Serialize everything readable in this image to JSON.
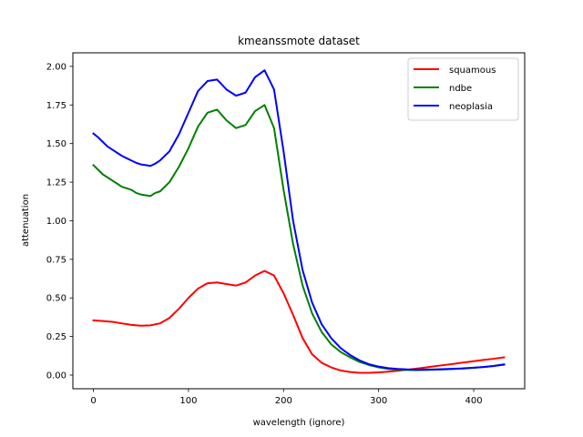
{
  "chart_data": {
    "type": "line",
    "title": "kmeanssmote dataset",
    "xlabel": "wavelength (ignore)",
    "ylabel": "attenuation",
    "xlim": [
      -21.6,
      453.6
    ],
    "ylim": [
      -0.0885,
      2.088
    ],
    "xticks": [
      0,
      100,
      200,
      300,
      400
    ],
    "yticks": [
      0.0,
      0.25,
      0.5,
      0.75,
      1.0,
      1.25,
      1.5,
      1.75,
      2.0
    ],
    "ytick_labels": [
      "0.00",
      "0.25",
      "0.50",
      "0.75",
      "1.00",
      "1.25",
      "1.50",
      "1.75",
      "2.00"
    ],
    "grid": false,
    "legend_position": "top-right",
    "series": [
      {
        "name": "squamous",
        "color": "#ff0000",
        "x": [
          0,
          10,
          20,
          30,
          40,
          50,
          60,
          70,
          80,
          90,
          100,
          110,
          120,
          130,
          140,
          150,
          160,
          170,
          180,
          190,
          200,
          210,
          220,
          230,
          240,
          250,
          260,
          270,
          280,
          290,
          300,
          310,
          320,
          330,
          340,
          350,
          360,
          370,
          380,
          390,
          400,
          410,
          420,
          432
        ],
        "values": [
          0.355,
          0.35,
          0.345,
          0.335,
          0.325,
          0.32,
          0.322,
          0.335,
          0.37,
          0.43,
          0.5,
          0.56,
          0.595,
          0.6,
          0.59,
          0.58,
          0.6,
          0.645,
          0.675,
          0.645,
          0.53,
          0.39,
          0.24,
          0.135,
          0.08,
          0.05,
          0.03,
          0.02,
          0.015,
          0.015,
          0.018,
          0.022,
          0.028,
          0.035,
          0.042,
          0.05,
          0.058,
          0.066,
          0.074,
          0.082,
          0.09,
          0.098,
          0.105,
          0.115
        ]
      },
      {
        "name": "ndbe",
        "color": "#008000",
        "x": [
          0,
          5,
          10,
          15,
          20,
          25,
          30,
          35,
          40,
          45,
          50,
          55,
          60,
          65,
          70,
          80,
          90,
          100,
          110,
          120,
          130,
          140,
          150,
          160,
          170,
          180,
          190,
          200,
          210,
          220,
          230,
          240,
          250,
          260,
          270,
          280,
          290,
          300,
          310,
          320,
          330,
          340,
          350,
          360,
          370,
          380,
          390,
          400,
          410,
          420,
          432
        ],
        "values": [
          1.36,
          1.33,
          1.3,
          1.28,
          1.26,
          1.24,
          1.22,
          1.21,
          1.2,
          1.18,
          1.17,
          1.165,
          1.16,
          1.18,
          1.19,
          1.25,
          1.35,
          1.47,
          1.61,
          1.7,
          1.72,
          1.65,
          1.6,
          1.62,
          1.71,
          1.75,
          1.6,
          1.2,
          0.85,
          0.58,
          0.4,
          0.28,
          0.2,
          0.15,
          0.115,
          0.085,
          0.065,
          0.05,
          0.04,
          0.035,
          0.033,
          0.032,
          0.033,
          0.035,
          0.037,
          0.04,
          0.043,
          0.047,
          0.052,
          0.058,
          0.07
        ]
      },
      {
        "name": "neoplasia",
        "color": "#0000ff",
        "x": [
          0,
          5,
          10,
          15,
          20,
          25,
          30,
          35,
          40,
          45,
          50,
          55,
          60,
          65,
          70,
          80,
          90,
          100,
          110,
          120,
          130,
          140,
          150,
          160,
          170,
          180,
          190,
          200,
          210,
          220,
          230,
          240,
          250,
          260,
          270,
          280,
          290,
          300,
          310,
          320,
          330,
          340,
          350,
          360,
          370,
          380,
          390,
          400,
          410,
          420,
          432
        ],
        "values": [
          1.565,
          1.54,
          1.51,
          1.48,
          1.46,
          1.44,
          1.42,
          1.405,
          1.39,
          1.375,
          1.365,
          1.36,
          1.355,
          1.37,
          1.39,
          1.45,
          1.56,
          1.7,
          1.84,
          1.905,
          1.915,
          1.85,
          1.81,
          1.83,
          1.93,
          1.975,
          1.85,
          1.45,
          1.0,
          0.68,
          0.47,
          0.33,
          0.24,
          0.175,
          0.13,
          0.095,
          0.07,
          0.055,
          0.045,
          0.04,
          0.037,
          0.036,
          0.036,
          0.037,
          0.039,
          0.041,
          0.044,
          0.048,
          0.052,
          0.058,
          0.068
        ]
      }
    ]
  }
}
